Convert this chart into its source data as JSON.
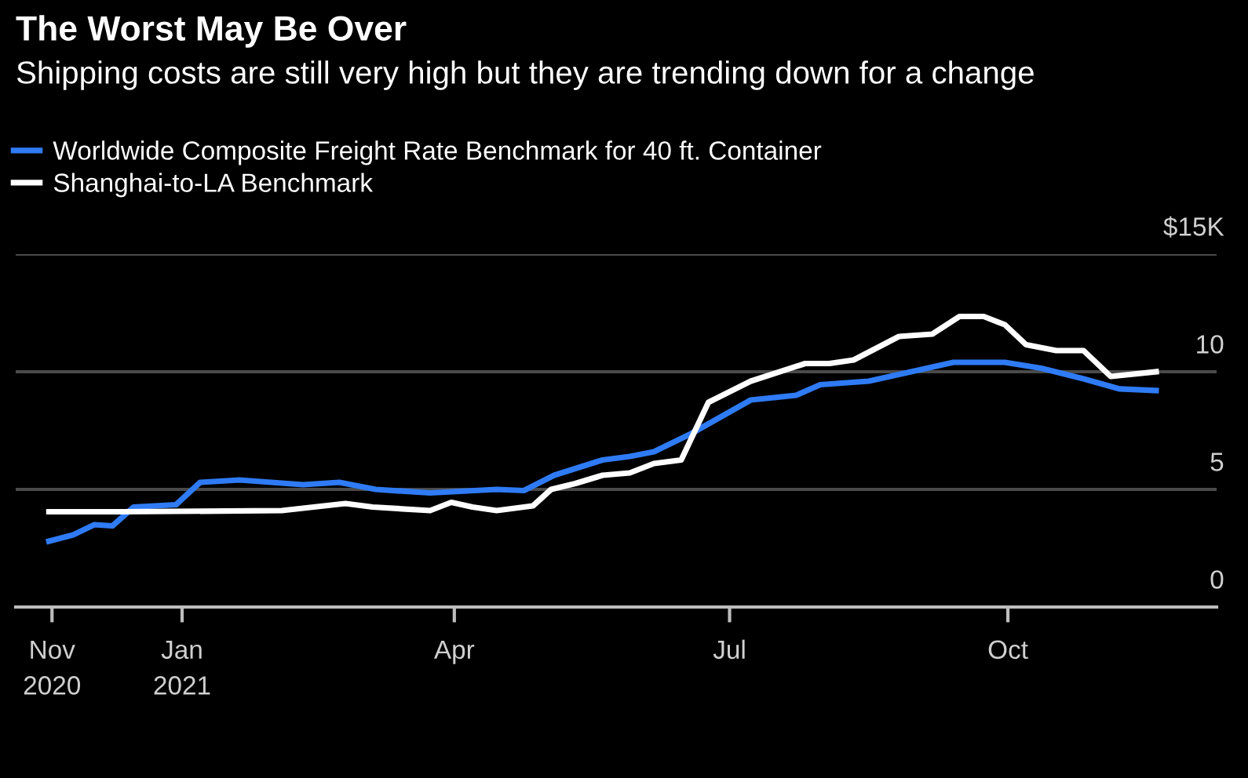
{
  "chart_data": {
    "type": "line",
    "title": "The Worst May Be Over",
    "subtitle": "Shipping costs are still very high but they are trending down for a change",
    "series": [
      {
        "name": "Worldwide Composite Freight Rate Benchmark for 40 ft. Container",
        "color": "#2f7bf5",
        "x": [
          "2020-11-18",
          "2020-11-26",
          "2020-12-03",
          "2020-12-09",
          "2020-12-16",
          "2020-12-30",
          "2021-01-07",
          "2021-01-20",
          "2021-02-10",
          "2021-02-22",
          "2021-03-06",
          "2021-03-24",
          "2021-04-15",
          "2021-04-24",
          "2021-05-04",
          "2021-05-20",
          "2021-05-29",
          "2021-06-06",
          "2021-06-18",
          "2021-07-08",
          "2021-07-23",
          "2021-07-31",
          "2021-08-16",
          "2021-08-30",
          "2021-09-13",
          "2021-09-30",
          "2021-10-12",
          "2021-10-26",
          "2021-11-07",
          "2021-11-19"
        ],
        "values": [
          2.8,
          3.07,
          3.5,
          3.45,
          4.25,
          4.35,
          5.3,
          5.4,
          5.2,
          5.3,
          5.0,
          4.85,
          5.0,
          4.95,
          5.6,
          6.25,
          6.4,
          6.6,
          7.35,
          8.8,
          9.0,
          9.45,
          9.6,
          10.0,
          10.4,
          10.4,
          10.15,
          9.7,
          9.27,
          9.2
        ]
      },
      {
        "name": "Shanghai-to-LA Benchmark",
        "color": "#ffffff",
        "x": [
          "2020-11-18",
          "2020-12-12",
          "2021-02-03",
          "2021-02-24",
          "2021-03-05",
          "2021-03-24",
          "2021-03-31",
          "2021-04-07",
          "2021-04-15",
          "2021-04-27",
          "2021-05-03",
          "2021-05-11",
          "2021-05-20",
          "2021-05-29",
          "2021-06-06",
          "2021-06-15",
          "2021-06-24",
          "2021-07-08",
          "2021-07-26",
          "2021-08-03",
          "2021-08-11",
          "2021-08-26",
          "2021-09-06",
          "2021-09-15",
          "2021-09-23",
          "2021-09-30",
          "2021-10-07",
          "2021-10-17",
          "2021-10-26",
          "2021-11-04",
          "2021-11-19"
        ],
        "values": [
          4.05,
          4.05,
          4.1,
          4.4,
          4.25,
          4.1,
          4.45,
          4.25,
          4.1,
          4.3,
          5.0,
          5.25,
          5.6,
          5.7,
          6.1,
          6.25,
          8.7,
          9.6,
          10.35,
          10.35,
          10.5,
          11.5,
          11.6,
          12.35,
          12.35,
          12.0,
          11.15,
          10.9,
          10.9,
          9.8,
          10.0
        ]
      }
    ],
    "xlim": [
      "2020-11-07",
      "2021-12-09"
    ],
    "xticks": [
      {
        "value": "2020-11-19",
        "label": "Nov\n2020"
      },
      {
        "value": "2021-01-01",
        "label": "Jan\n2021"
      },
      {
        "value": "2021-04-01",
        "label": "Apr"
      },
      {
        "value": "2021-07-01",
        "label": "Jul"
      },
      {
        "value": "2021-10-01",
        "label": "Oct"
      }
    ],
    "ylim": [
      0,
      15
    ],
    "yticks": [
      0,
      5,
      10,
      {
        "value": 15,
        "label": "$15K"
      }
    ],
    "grid": "y",
    "legend": "top left",
    "marker": "none",
    "line_style": "solid"
  }
}
